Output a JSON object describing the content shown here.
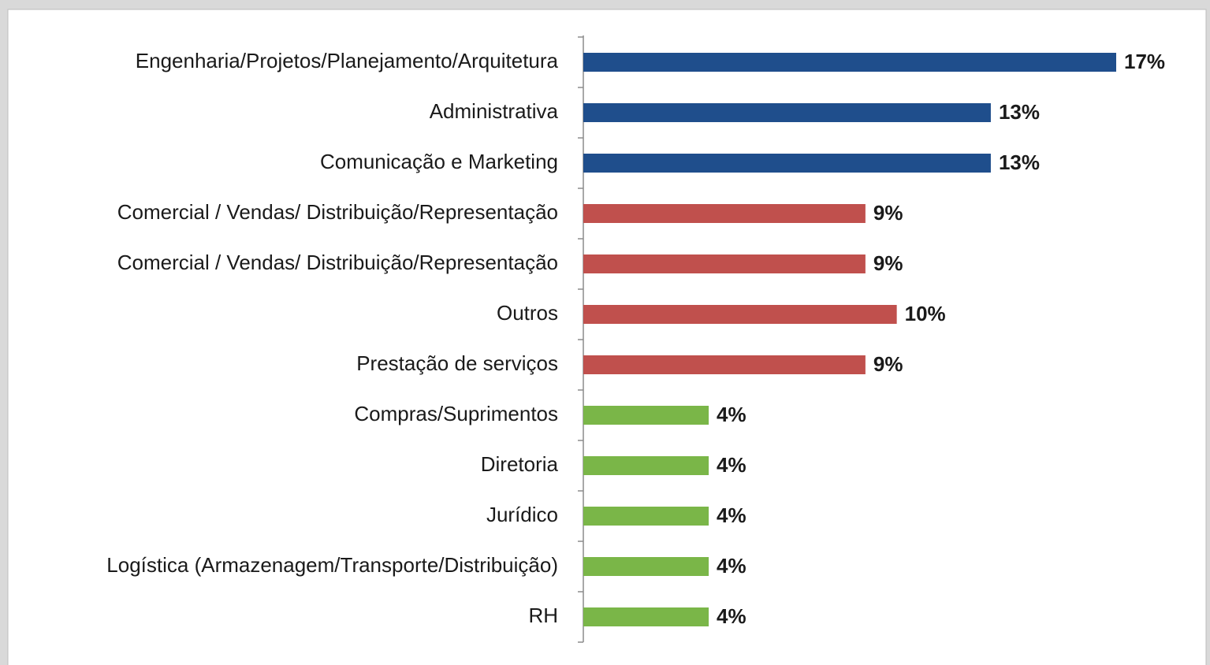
{
  "chart_data": {
    "type": "hbar",
    "categories": [
      "Engenharia/Projetos/Planejamento/Arquitetura",
      "Administrativa",
      "Comunicação e Marketing",
      "Comercial / Vendas/ Distribuição/Representação",
      "Comercial / Vendas/ Distribuição/Representação",
      "Outros",
      "Prestação de serviços",
      "Compras/Suprimentos",
      "Diretoria",
      "Jurídico",
      "Logística (Armazenagem/Transporte/Distribuição)",
      "RH"
    ],
    "values": [
      17,
      13,
      13,
      9,
      9,
      10,
      9,
      4,
      4,
      4,
      4,
      4
    ],
    "value_labels": [
      "17%",
      "13%",
      "13%",
      "9%",
      "9%",
      "10%",
      "9%",
      "4%",
      "4%",
      "4%",
      "4%",
      "4%"
    ],
    "colors": [
      "#1f4e8c",
      "#1f4e8c",
      "#1f4e8c",
      "#c0504d",
      "#c0504d",
      "#c0504d",
      "#c0504d",
      "#7ab648",
      "#7ab648",
      "#7ab648",
      "#7ab648",
      "#7ab648"
    ]
  }
}
